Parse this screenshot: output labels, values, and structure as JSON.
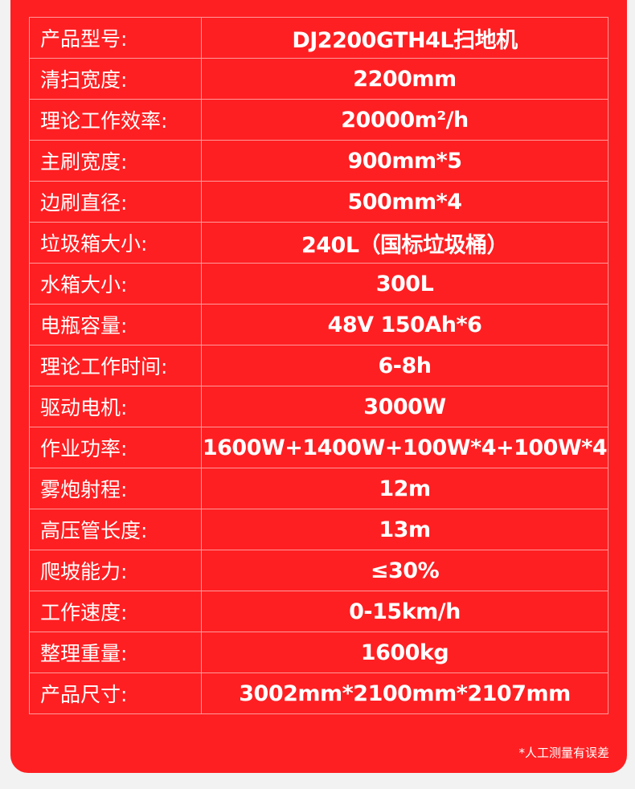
{
  "specs": [
    {
      "label": "产品型号:",
      "value": "DJ2200GTH4L扫地机"
    },
    {
      "label": "清扫宽度:",
      "value": "2200mm"
    },
    {
      "label": "理论工作效率:",
      "value": "20000m²/h"
    },
    {
      "label": "主刷宽度:",
      "value": "900mm*5"
    },
    {
      "label": "边刷直径:",
      "value": "500mm*4"
    },
    {
      "label": "垃圾箱大小:",
      "value": "240L（国标垃圾桶）"
    },
    {
      "label": "水箱大小:",
      "value": "300L"
    },
    {
      "label": "电瓶容量:",
      "value": "48V 150Ah*6"
    },
    {
      "label": "理论工作时间:",
      "value": "6-8h"
    },
    {
      "label": "驱动电机:",
      "value": "3000W"
    },
    {
      "label": "作业功率:",
      "value": "1600W+1400W+100W*4+100W*4"
    },
    {
      "label": "雾炮射程:",
      "value": "12m"
    },
    {
      "label": "高压管长度:",
      "value": "13m"
    },
    {
      "label": "爬坡能力:",
      "value": "≤30%"
    },
    {
      "label": "工作速度:",
      "value": "0-15km/h"
    },
    {
      "label": "整理重量:",
      "value": "1600kg"
    },
    {
      "label": "产品尺寸:",
      "value": "3002mm*2100mm*2107mm"
    }
  ],
  "note": "*人工测量有误差",
  "colors": {
    "panel": "#fe1f22",
    "background": "#f2f2f2",
    "border": "#ff9a9a"
  }
}
